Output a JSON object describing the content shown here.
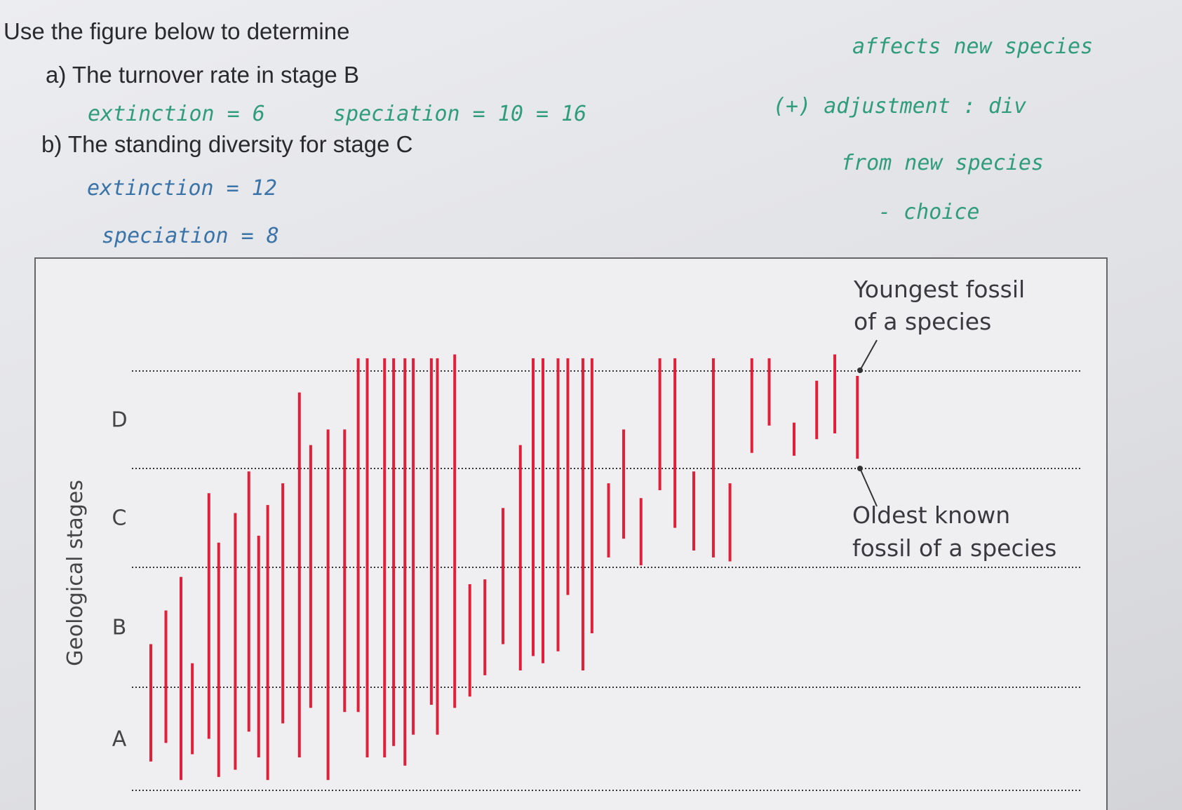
{
  "header": {
    "title": "Use the figure below to determine"
  },
  "questions": [
    {
      "label": "a) The turnover rate in stage B",
      "answer": [
        "extinction = 6",
        "speciation = 10 = 16"
      ]
    },
    {
      "label": "b) The standing diversity for stage C",
      "answer": [
        "extinction = 12",
        "speciation = 8"
      ]
    }
  ],
  "side_notes": [
    "affects new species",
    "(+) adjustment : div",
    "from new species",
    "- choice"
  ],
  "figure": {
    "y_label": "Geological stages",
    "stages": [
      "A",
      "B",
      "C",
      "D"
    ],
    "youngest_label": [
      "Youngest fossil",
      "of a species"
    ],
    "oldest_label": [
      "Oldest known",
      "fossil of a species"
    ],
    "species": [
      [
        0.28,
        1.36
      ],
      [
        0.46,
        1.64
      ],
      [
        0.1,
        1.92
      ],
      [
        0.35,
        1.2
      ],
      [
        0.5,
        2.75
      ],
      [
        0.13,
        2.25
      ],
      [
        0.2,
        2.55
      ],
      [
        0.57,
        2.97
      ],
      [
        0.32,
        2.32
      ],
      [
        0.1,
        2.63
      ],
      [
        0.65,
        2.85
      ],
      [
        0.32,
        3.78
      ],
      [
        0.8,
        3.24
      ],
      [
        0.1,
        3.4
      ],
      [
        0.76,
        3.4
      ],
      [
        0.76,
        4.13
      ],
      [
        0.32,
        4.13
      ],
      [
        0.32,
        4.13
      ],
      [
        0.43,
        4.13
      ],
      [
        0.24,
        4.13
      ],
      [
        0.54,
        4.13
      ],
      [
        0.83,
        4.13
      ],
      [
        0.54,
        4.13
      ],
      [
        0.8,
        4.17
      ],
      [
        0.91,
        1.86
      ],
      [
        1.1,
        1.9
      ],
      [
        1.36,
        2.6
      ],
      [
        1.14,
        3.24
      ],
      [
        1.26,
        4.13
      ],
      [
        1.2,
        4.13
      ],
      [
        1.3,
        4.13
      ],
      [
        1.77,
        4.13
      ],
      [
        1.14,
        4.13
      ],
      [
        1.45,
        4.13
      ],
      [
        2.1,
        2.85
      ],
      [
        2.29,
        3.4
      ],
      [
        2.02,
        2.7
      ],
      [
        2.78,
        4.13
      ],
      [
        2.4,
        4.13
      ],
      [
        2.17,
        2.97
      ],
      [
        2.1,
        4.13
      ],
      [
        2.06,
        2.85
      ],
      [
        3.16,
        4.13
      ],
      [
        3.44,
        4.13
      ],
      [
        3.13,
        3.47
      ],
      [
        3.3,
        3.9
      ],
      [
        3.36,
        4.17
      ],
      [
        3.1,
        3.95
      ]
    ]
  }
}
